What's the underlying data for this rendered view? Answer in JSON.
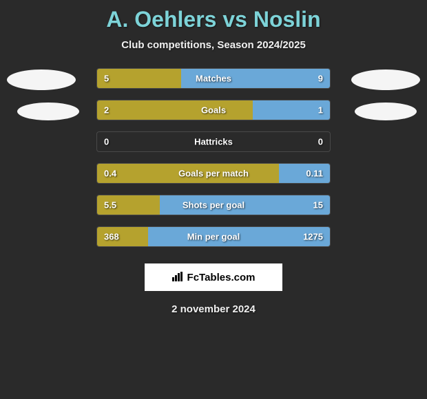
{
  "title": "A. Oehlers vs Noslin",
  "subtitle": "Club competitions, Season 2024/2025",
  "date": "2 november 2024",
  "logo_text": "FcTables.com",
  "colors": {
    "left_bar": "#b5a22e",
    "right_bar": "#6aa8d8",
    "background": "#2a2a2a",
    "title": "#7dd3d8",
    "text": "#f0f0f0",
    "badge": "#f5f5f5"
  },
  "rows": [
    {
      "label": "Matches",
      "left_val": "5",
      "right_val": "9",
      "left_pct": 36,
      "right_pct": 64
    },
    {
      "label": "Goals",
      "left_val": "2",
      "right_val": "1",
      "left_pct": 67,
      "right_pct": 33
    },
    {
      "label": "Hattricks",
      "left_val": "0",
      "right_val": "0",
      "left_pct": 0,
      "right_pct": 0
    },
    {
      "label": "Goals per match",
      "left_val": "0.4",
      "right_val": "0.11",
      "left_pct": 78,
      "right_pct": 22
    },
    {
      "label": "Shots per goal",
      "left_val": "5.5",
      "right_val": "15",
      "left_pct": 27,
      "right_pct": 73
    },
    {
      "label": "Min per goal",
      "left_val": "368",
      "right_val": "1275",
      "left_pct": 22,
      "right_pct": 78
    }
  ],
  "badges": {
    "left_rows": [
      0,
      1
    ],
    "right_rows": [
      0,
      1
    ]
  }
}
